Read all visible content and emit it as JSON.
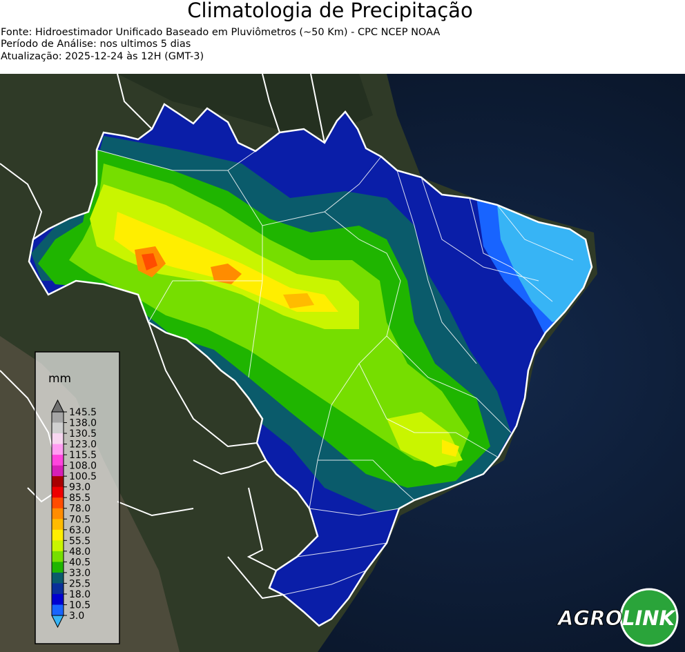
{
  "header": {
    "title": "Climatologia de Precipitação",
    "source": "Fonte: Hidroestimador Unificado Baseado em Pluviômetros (~50 Km) - CPC NCEP NOAA",
    "period": "Período de Análise: nos ultimos 5 dias",
    "updated": "Atualização: 2025-12-24 às 12H (GMT-3)"
  },
  "legend": {
    "unit": "mm",
    "levels": [
      "145.5",
      "138.0",
      "130.5",
      "123.0",
      "115.5",
      "108.0",
      "100.5",
      "93.0",
      "85.5",
      "78.0",
      "70.5",
      "63.0",
      "55.5",
      "48.0",
      "40.5",
      "33.0",
      "25.5",
      "18.0",
      "10.5",
      "3.0"
    ],
    "colors": [
      "#707070",
      "#a6a6a6",
      "#d0d0d0",
      "#f7d6f0",
      "#ff9cf2",
      "#ff44dd",
      "#d61fb6",
      "#a80000",
      "#ee0000",
      "#ff4c00",
      "#ff8c00",
      "#ffbb00",
      "#ffee00",
      "#c9f500",
      "#76de00",
      "#1fb500",
      "#0a5b6b",
      "#0a2f9a",
      "#0000d0",
      "#1864ff",
      "#37b4f5"
    ]
  },
  "logo": {
    "part1": "AGRO",
    "part2": "LINK"
  },
  "theme": {
    "ocean": "#0b1a33",
    "land": "#2e3526",
    "border": "#ffffff"
  }
}
